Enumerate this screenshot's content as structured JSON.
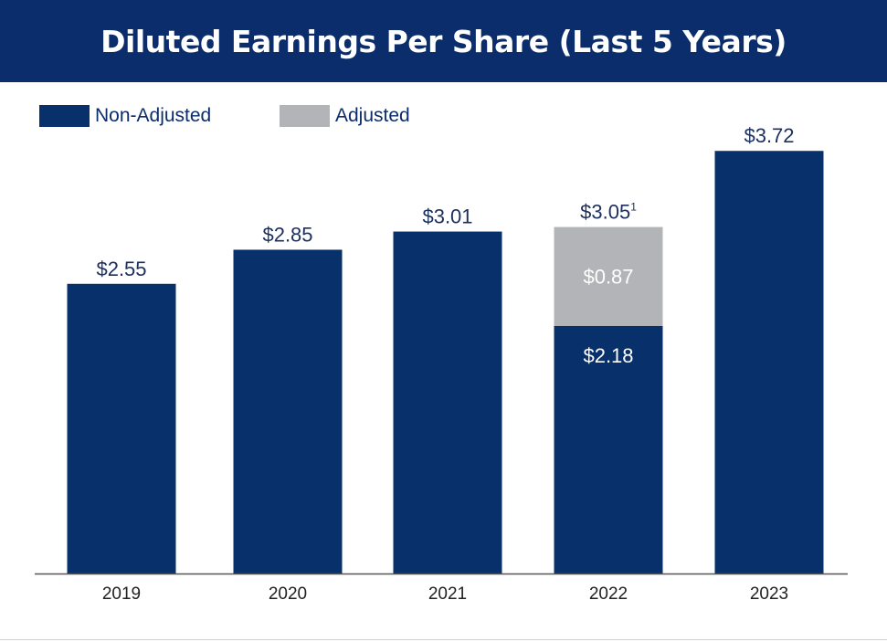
{
  "title": "Diluted Earnings Per Share (Last 5 Years)",
  "colors": {
    "header_bg": "#0b2d6b",
    "non_adjusted": "#08306b",
    "adjusted": "#b3b4b7",
    "axis": "#555555",
    "label": "#1c2f5e"
  },
  "legend": [
    {
      "label": "Non-Adjusted",
      "color": "#08306b"
    },
    {
      "label": "Adjusted",
      "color": "#b3b4b7"
    }
  ],
  "chart_data": {
    "type": "bar",
    "stacked": true,
    "title": "Diluted Earnings Per Share (Last 5 Years)",
    "categories": [
      "2019",
      "2020",
      "2021",
      "2022",
      "2023"
    ],
    "series": [
      {
        "name": "Non-Adjusted",
        "values": [
          2.55,
          2.85,
          3.01,
          2.18,
          3.72
        ]
      },
      {
        "name": "Adjusted",
        "values": [
          0,
          0,
          0,
          0.87,
          0
        ]
      }
    ],
    "total_labels": [
      "$2.55",
      "$2.85",
      "$3.01",
      "$3.05",
      "$3.72"
    ],
    "total_label_footnotes": [
      "",
      "",
      "",
      "1",
      ""
    ],
    "segment_labels": [
      {
        "category": "2022",
        "series": "Non-Adjusted",
        "text": "$2.18"
      },
      {
        "category": "2022",
        "series": "Adjusted",
        "text": "$0.87"
      }
    ],
    "ylim": [
      0,
      3.8
    ],
    "grid": false,
    "legend_position": "top-left"
  }
}
